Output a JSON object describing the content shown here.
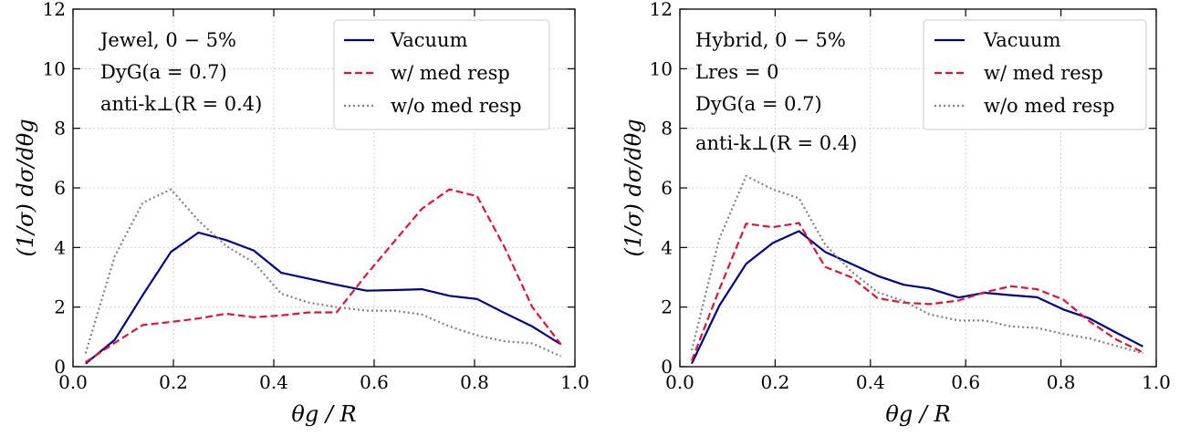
{
  "chart_data": [
    {
      "type": "line",
      "panel": "left",
      "xlabel": "θg / R",
      "ylabel": "(1/σ) dσ/dθg",
      "xlim": [
        0.0,
        1.0
      ],
      "ylim": [
        0,
        12
      ],
      "xticks": [
        "0.0",
        "0.2",
        "0.4",
        "0.6",
        "0.8",
        "1.0"
      ],
      "yticks": [
        "0",
        "2",
        "4",
        "6",
        "8",
        "10",
        "12"
      ],
      "grid": true,
      "legend_position": "top-right",
      "annotations": [
        "Jewel, 0 − 5%",
        "DyG(a = 0.7)",
        "anti-k⊥(R = 0.4)"
      ],
      "series": [
        {
          "name": "Vacuum",
          "color": "#000080",
          "style": "solid",
          "x": [
            0.025,
            0.083,
            0.139,
            0.195,
            0.25,
            0.305,
            0.36,
            0.415,
            0.47,
            0.525,
            0.585,
            0.64,
            0.695,
            0.75,
            0.805,
            0.86,
            0.915,
            0.972
          ],
          "y": [
            0.1,
            0.9,
            2.4,
            3.85,
            4.5,
            4.25,
            3.9,
            3.15,
            2.95,
            2.75,
            2.55,
            2.57,
            2.6,
            2.38,
            2.27,
            1.8,
            1.35,
            0.75
          ]
        },
        {
          "name": "w/ med resp",
          "color": "#DC143C",
          "style": "dashed",
          "x": [
            0.025,
            0.083,
            0.139,
            0.195,
            0.25,
            0.305,
            0.36,
            0.415,
            0.47,
            0.525,
            0.585,
            0.64,
            0.695,
            0.75,
            0.805,
            0.86,
            0.915,
            0.972
          ],
          "y": [
            0.15,
            0.8,
            1.4,
            1.5,
            1.62,
            1.78,
            1.66,
            1.72,
            1.82,
            1.82,
            3.1,
            4.2,
            5.3,
            5.95,
            5.72,
            4.0,
            2.0,
            0.75
          ]
        },
        {
          "name": "w/o med resp",
          "color": "#808080",
          "style": "dotted",
          "x": [
            0.025,
            0.083,
            0.139,
            0.195,
            0.25,
            0.305,
            0.36,
            0.415,
            0.47,
            0.525,
            0.585,
            0.64,
            0.695,
            0.75,
            0.805,
            0.86,
            0.915,
            0.972
          ],
          "y": [
            0.45,
            3.7,
            5.5,
            5.95,
            4.9,
            4.05,
            3.5,
            2.45,
            2.15,
            2.0,
            1.88,
            1.88,
            1.75,
            1.35,
            1.05,
            0.85,
            0.78,
            0.35
          ]
        }
      ]
    },
    {
      "type": "line",
      "panel": "right",
      "xlabel": "θg / R",
      "ylabel": "(1/σ) dσ/dθg",
      "xlim": [
        0.0,
        1.0
      ],
      "ylim": [
        0,
        12
      ],
      "xticks": [
        "0.0",
        "0.2",
        "0.4",
        "0.6",
        "0.8",
        "1.0"
      ],
      "yticks": [
        "0",
        "2",
        "4",
        "6",
        "8",
        "10",
        "12"
      ],
      "grid": true,
      "legend_position": "top-right",
      "annotations": [
        "Hybrid, 0 − 5%",
        "Lres = 0",
        "DyG(a = 0.7)",
        "anti-k⊥(R = 0.4)"
      ],
      "series": [
        {
          "name": "Vacuum",
          "color": "#000080",
          "style": "solid",
          "x": [
            0.025,
            0.083,
            0.139,
            0.195,
            0.25,
            0.305,
            0.36,
            0.415,
            0.47,
            0.525,
            0.585,
            0.64,
            0.695,
            0.75,
            0.805,
            0.86,
            0.915,
            0.972
          ],
          "y": [
            0.1,
            2.05,
            3.45,
            4.15,
            4.55,
            3.85,
            3.45,
            3.05,
            2.75,
            2.62,
            2.32,
            2.48,
            2.4,
            2.33,
            1.92,
            1.62,
            1.15,
            0.68
          ]
        },
        {
          "name": "w/ med resp",
          "color": "#DC143C",
          "style": "dashed",
          "x": [
            0.025,
            0.083,
            0.139,
            0.195,
            0.25,
            0.305,
            0.36,
            0.415,
            0.47,
            0.525,
            0.585,
            0.64,
            0.695,
            0.75,
            0.805,
            0.86,
            0.915,
            0.972
          ],
          "y": [
            0.2,
            2.6,
            4.8,
            4.68,
            4.82,
            3.35,
            3.0,
            2.3,
            2.15,
            2.1,
            2.22,
            2.5,
            2.7,
            2.6,
            2.25,
            1.52,
            0.92,
            0.48
          ]
        },
        {
          "name": "w/o med resp",
          "color": "#808080",
          "style": "dotted",
          "x": [
            0.025,
            0.083,
            0.139,
            0.195,
            0.25,
            0.305,
            0.36,
            0.415,
            0.47,
            0.525,
            0.585,
            0.64,
            0.695,
            0.75,
            0.805,
            0.86,
            0.915,
            0.972
          ],
          "y": [
            0.55,
            4.3,
            6.4,
            5.95,
            5.65,
            4.1,
            3.2,
            2.5,
            2.2,
            1.75,
            1.55,
            1.55,
            1.35,
            1.3,
            1.1,
            0.95,
            0.7,
            0.45
          ]
        }
      ]
    }
  ]
}
